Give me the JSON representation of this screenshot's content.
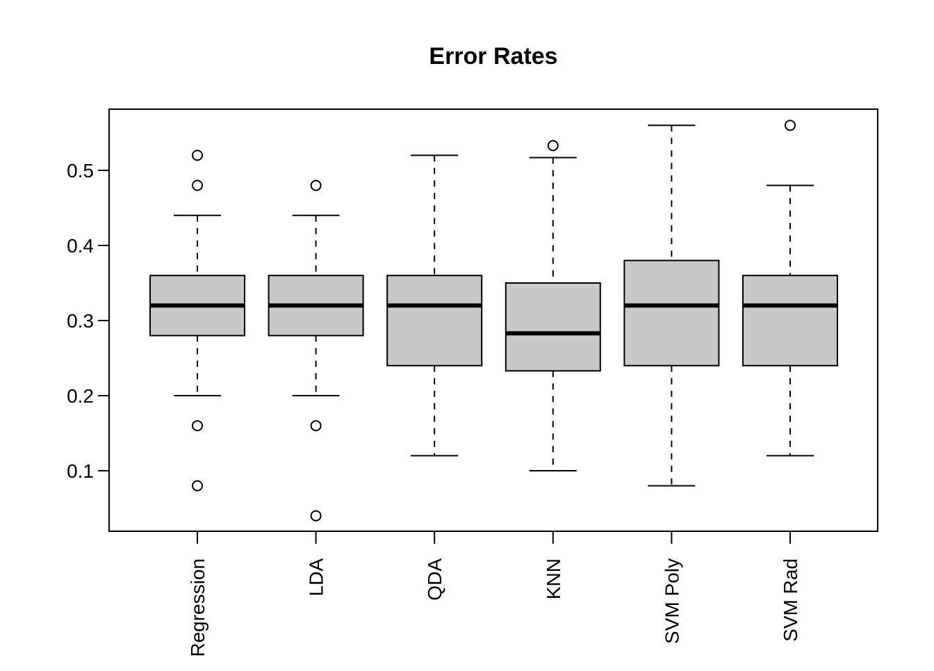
{
  "chart_data": {
    "type": "boxplot",
    "title": "Error Rates",
    "xlabel": "",
    "ylabel": "",
    "ylim": [
      0.02,
      0.58
    ],
    "yticks": [
      0.1,
      0.2,
      0.3,
      0.4,
      0.5
    ],
    "ytick_labels": [
      "0.1",
      "0.2",
      "0.3",
      "0.4",
      "0.5"
    ],
    "categories": [
      "Regression",
      "LDA",
      "QDA",
      "KNN",
      "SVM Poly",
      "SVM Rad"
    ],
    "boxes": [
      {
        "whisker_low": 0.2,
        "q1": 0.28,
        "median": 0.32,
        "q3": 0.36,
        "whisker_high": 0.44,
        "outliers": [
          0.52,
          0.48,
          0.16,
          0.08
        ]
      },
      {
        "whisker_low": 0.2,
        "q1": 0.28,
        "median": 0.32,
        "q3": 0.36,
        "whisker_high": 0.44,
        "outliers": [
          0.48,
          0.16,
          0.04
        ]
      },
      {
        "whisker_low": 0.12,
        "q1": 0.24,
        "median": 0.32,
        "q3": 0.36,
        "whisker_high": 0.52,
        "outliers": []
      },
      {
        "whisker_low": 0.1,
        "q1": 0.233,
        "median": 0.283,
        "q3": 0.35,
        "whisker_high": 0.517,
        "outliers": [
          0.533
        ]
      },
      {
        "whisker_low": 0.08,
        "q1": 0.24,
        "median": 0.32,
        "q3": 0.38,
        "whisker_high": 0.56,
        "outliers": []
      },
      {
        "whisker_low": 0.12,
        "q1": 0.24,
        "median": 0.32,
        "q3": 0.36,
        "whisker_high": 0.48,
        "outliers": [
          0.56
        ]
      }
    ],
    "box_fill": "#c8c8c8",
    "line_color": "#000000",
    "grid": false,
    "legend": "none"
  }
}
